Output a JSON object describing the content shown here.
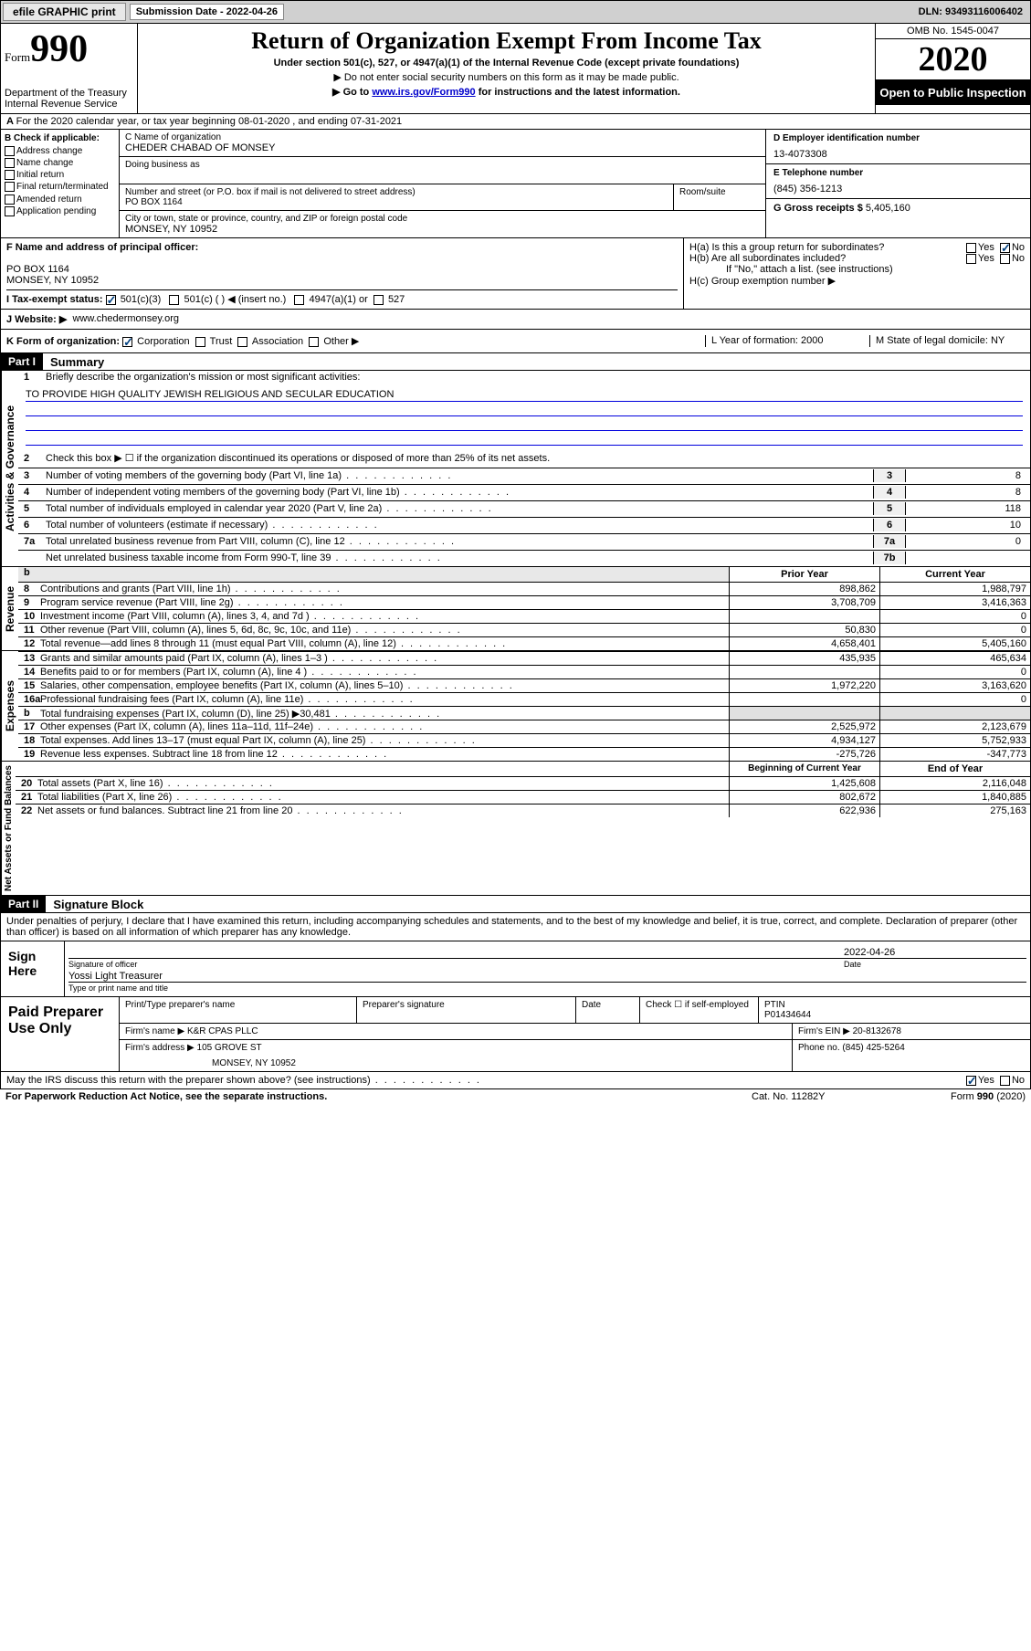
{
  "top": {
    "efile": "efile GRAPHIC print",
    "sub_date_label": "Submission Date - ",
    "sub_date": "2022-04-26",
    "dln_label": "DLN: ",
    "dln": "93493116006402"
  },
  "header": {
    "form_word": "Form",
    "form_num": "990",
    "dept": "Department of the Treasury",
    "irs": "Internal Revenue Service",
    "title": "Return of Organization Exempt From Income Tax",
    "subtitle": "Under section 501(c), 527, or 4947(a)(1) of the Internal Revenue Code (except private foundations)",
    "line1": "▶ Do not enter social security numbers on this form as it may be made public.",
    "line2_pre": "▶ Go to ",
    "line2_link": "www.irs.gov/Form990",
    "line2_post": " for instructions and the latest information.",
    "omb": "OMB No. 1545-0047",
    "year": "2020",
    "inspection": "Open to Public Inspection"
  },
  "rowA": "For the 2020 calendar year, or tax year beginning 08-01-2020   , and ending 07-31-2021",
  "B": {
    "label": "B Check if applicable:",
    "opts": [
      "Address change",
      "Name change",
      "Initial return",
      "Final return/terminated",
      "Amended return",
      "Application pending"
    ]
  },
  "C": {
    "name_label": "C Name of organization",
    "name": "CHEDER CHABAD OF MONSEY",
    "dba_label": "Doing business as",
    "street_label": "Number and street (or P.O. box if mail is not delivered to street address)",
    "room_label": "Room/suite",
    "street": "PO BOX 1164",
    "city_label": "City or town, state or province, country, and ZIP or foreign postal code",
    "city": "MONSEY, NY  10952"
  },
  "D": {
    "label": "D Employer identification number",
    "val": "13-4073308"
  },
  "E": {
    "label": "E Telephone number",
    "val": "(845) 356-1213"
  },
  "G": {
    "label": "G Gross receipts $ ",
    "val": "5,405,160"
  },
  "F": {
    "label": "F  Name and address of principal officer:",
    "addr1": "PO BOX 1164",
    "addr2": "MONSEY, NY  10952"
  },
  "H": {
    "a": "H(a)  Is this a group return for subordinates?",
    "b": "H(b)  Are all subordinates included?",
    "b_note": "If \"No,\" attach a list. (see instructions)",
    "c": "H(c)  Group exemption number ▶"
  },
  "I": {
    "label": "I    Tax-exempt status:",
    "o1": "501(c)(3)",
    "o2": "501(c) (  ) ◀ (insert no.)",
    "o3": "4947(a)(1) or",
    "o4": "527"
  },
  "J": {
    "label": "J   Website: ▶",
    "val": "www.chedermonsey.org"
  },
  "K": {
    "label": "K Form of organization:",
    "opts": [
      "Corporation",
      "Trust",
      "Association",
      "Other ▶"
    ],
    "L": "L Year of formation: 2000",
    "M": "M State of legal domicile: NY"
  },
  "part1": {
    "header": "Part I",
    "title": "Summary",
    "l1": "Briefly describe the organization's mission or most significant activities:",
    "l1_val": "TO PROVIDE HIGH QUALITY JEWISH RELIGIOUS AND SECULAR EDUCATION",
    "l2": "Check this box ▶ ☐  if the organization discontinued its operations or disposed of more than 25% of its net assets.",
    "lines_ag": [
      {
        "n": "3",
        "d": "Number of voting members of the governing body (Part VI, line 1a)",
        "c": "3",
        "v": "8"
      },
      {
        "n": "4",
        "d": "Number of independent voting members of the governing body (Part VI, line 1b)",
        "c": "4",
        "v": "8"
      },
      {
        "n": "5",
        "d": "Total number of individuals employed in calendar year 2020 (Part V, line 2a)",
        "c": "5",
        "v": "118"
      },
      {
        "n": "6",
        "d": "Total number of volunteers (estimate if necessary)",
        "c": "6",
        "v": "10"
      },
      {
        "n": "7a",
        "d": "Total unrelated business revenue from Part VIII, column (C), line 12",
        "c": "7a",
        "v": "0"
      },
      {
        "n": "",
        "d": "Net unrelated business taxable income from Form 990-T, line 39",
        "c": "7b",
        "v": ""
      }
    ],
    "col_prior": "Prior Year",
    "col_current": "Current Year",
    "revenue": [
      {
        "n": "8",
        "d": "Contributions and grants (Part VIII, line 1h)",
        "p": "898,862",
        "c": "1,988,797"
      },
      {
        "n": "9",
        "d": "Program service revenue (Part VIII, line 2g)",
        "p": "3,708,709",
        "c": "3,416,363"
      },
      {
        "n": "10",
        "d": "Investment income (Part VIII, column (A), lines 3, 4, and 7d )",
        "p": "",
        "c": "0"
      },
      {
        "n": "11",
        "d": "Other revenue (Part VIII, column (A), lines 5, 6d, 8c, 9c, 10c, and 11e)",
        "p": "50,830",
        "c": "0"
      },
      {
        "n": "12",
        "d": "Total revenue—add lines 8 through 11 (must equal Part VIII, column (A), line 12)",
        "p": "4,658,401",
        "c": "5,405,160"
      }
    ],
    "expenses": [
      {
        "n": "13",
        "d": "Grants and similar amounts paid (Part IX, column (A), lines 1–3 )",
        "p": "435,935",
        "c": "465,634"
      },
      {
        "n": "14",
        "d": "Benefits paid to or for members (Part IX, column (A), line 4 )",
        "p": "",
        "c": "0"
      },
      {
        "n": "15",
        "d": "Salaries, other compensation, employee benefits (Part IX, column (A), lines 5–10)",
        "p": "1,972,220",
        "c": "3,163,620"
      },
      {
        "n": "16a",
        "d": "Professional fundraising fees (Part IX, column (A), line 11e)",
        "p": "",
        "c": "0"
      },
      {
        "n": "b",
        "d": "Total fundraising expenses (Part IX, column (D), line 25) ▶30,481",
        "p": null,
        "c": null
      },
      {
        "n": "17",
        "d": "Other expenses (Part IX, column (A), lines 11a–11d, 11f–24e)",
        "p": "2,525,972",
        "c": "2,123,679"
      },
      {
        "n": "18",
        "d": "Total expenses. Add lines 13–17 (must equal Part IX, column (A), line 25)",
        "p": "4,934,127",
        "c": "5,752,933"
      },
      {
        "n": "19",
        "d": "Revenue less expenses. Subtract line 18 from line 12",
        "p": "-275,726",
        "c": "-347,773"
      }
    ],
    "col_begin": "Beginning of Current Year",
    "col_end": "End of Year",
    "net": [
      {
        "n": "20",
        "d": "Total assets (Part X, line 16)",
        "p": "1,425,608",
        "c": "2,116,048"
      },
      {
        "n": "21",
        "d": "Total liabilities (Part X, line 26)",
        "p": "802,672",
        "c": "1,840,885"
      },
      {
        "n": "22",
        "d": "Net assets or fund balances. Subtract line 21 from line 20",
        "p": "622,936",
        "c": "275,163"
      }
    ],
    "side_ag": "Activities & Governance",
    "side_rev": "Revenue",
    "side_exp": "Expenses",
    "side_net": "Net Assets or Fund Balances"
  },
  "part2": {
    "header": "Part II",
    "title": "Signature Block",
    "declare": "Under penalties of perjury, I declare that I have examined this return, including accompanying schedules and statements, and to the best of my knowledge and belief, it is true, correct, and complete. Declaration of preparer (other than officer) is based on all information of which preparer has any knowledge.",
    "sign_here": "Sign Here",
    "sig_officer": "Signature of officer",
    "date": "Date",
    "sig_date": "2022-04-26",
    "officer_name": "Yossi Light Treasurer",
    "type_name": "Type or print name and title",
    "paid": "Paid Preparer Use Only",
    "prep_name_label": "Print/Type preparer's name",
    "prep_sig_label": "Preparer's signature",
    "date_label": "Date",
    "check_self": "Check ☐ if self-employed",
    "ptin_label": "PTIN",
    "ptin": "P01434644",
    "firm_name_label": "Firm's name    ▶",
    "firm_name": "K&R CPAS PLLC",
    "firm_ein_label": "Firm's EIN ▶",
    "firm_ein": "20-8132678",
    "firm_addr_label": "Firm's address ▶",
    "firm_addr": "105 GROVE ST",
    "firm_city": "MONSEY, NY  10952",
    "phone_label": "Phone no. ",
    "phone": "(845) 425-5264",
    "discuss": "May the IRS discuss this return with the preparer shown above? (see instructions)"
  },
  "footer": {
    "left": "For Paperwork Reduction Act Notice, see the separate instructions.",
    "cat": "Cat. No. 11282Y",
    "form": "Form 990 (2020)"
  }
}
